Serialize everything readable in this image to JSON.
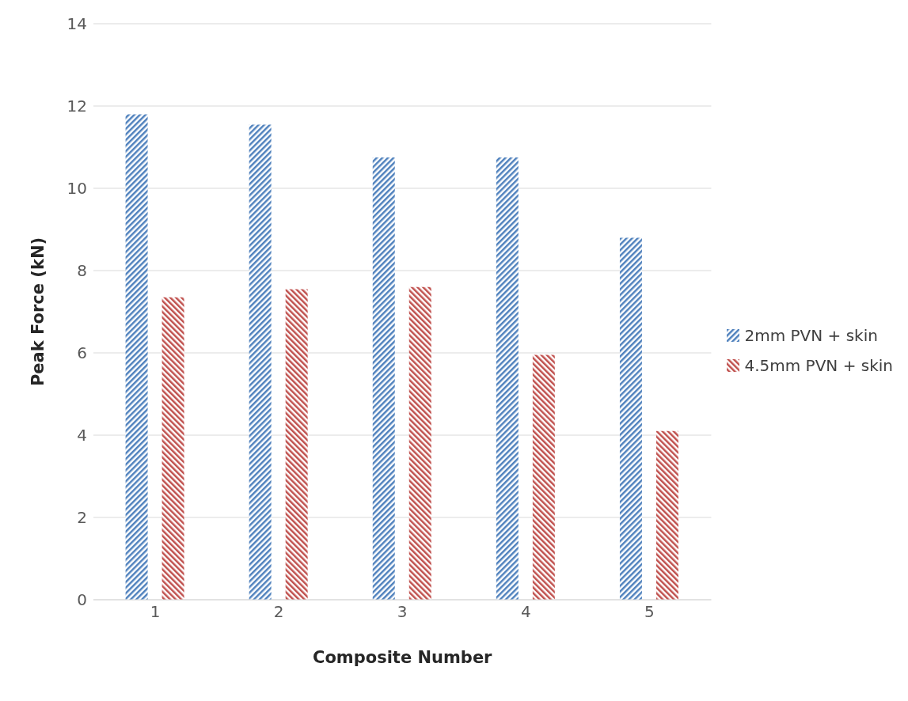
{
  "chart_data": {
    "type": "bar",
    "xlabel": "Composite Number",
    "ylabel": "Peak Force (kN)",
    "categories": [
      "1",
      "2",
      "3",
      "4",
      "5"
    ],
    "series": [
      {
        "name": "2mm PVN + skin",
        "color": "#4f81bd",
        "values": [
          11.8,
          11.55,
          10.75,
          10.75,
          8.8
        ]
      },
      {
        "name": "4.5mm PVN + skin",
        "color": "#c0504d",
        "values": [
          7.35,
          7.55,
          7.6,
          5.95,
          4.1
        ]
      }
    ],
    "ylim": [
      0,
      14
    ],
    "yticks": [
      0,
      2,
      4,
      6,
      8,
      10,
      12,
      14
    ],
    "grid": "y",
    "legend": "right"
  }
}
